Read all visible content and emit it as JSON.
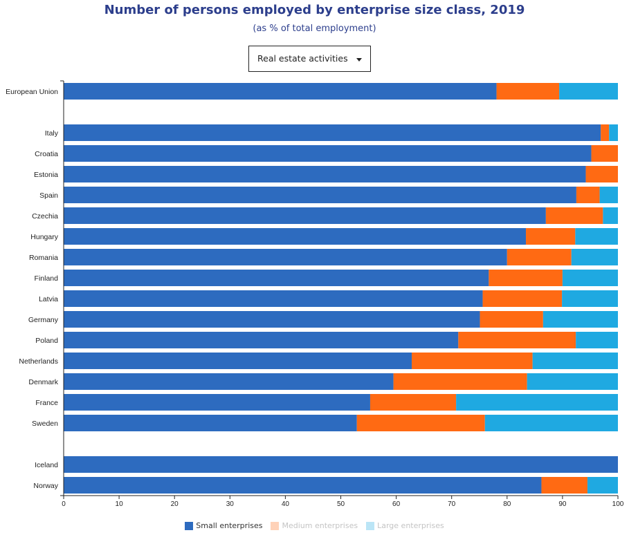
{
  "header": {
    "title": "Number of persons employed by enterprise size class, 2019",
    "subtitle": "(as % of total employment)"
  },
  "selector": {
    "selected": "Real estate activities"
  },
  "legend": [
    {
      "label": "Small enterprises",
      "color": "#2d6bbf",
      "active": true
    },
    {
      "label": "Medium enterprises",
      "color": "#ff6a13",
      "active": false
    },
    {
      "label": "Large enterprises",
      "color": "#1fa9e1",
      "active": false
    }
  ],
  "chart_data": {
    "type": "bar",
    "orientation": "horizontal",
    "stacked": true,
    "title": "Number of persons employed by enterprise size class, 2019",
    "subtitle": "(as % of total employment)",
    "xlim": [
      0,
      100
    ],
    "xticks": [
      "0",
      "10",
      "20",
      "30",
      "40",
      "50",
      "60",
      "70",
      "80",
      "90",
      "100"
    ],
    "categories": [
      "European Union",
      "",
      "Italy",
      "Croatia",
      "Estonia",
      "Spain",
      "Czechia",
      "Hungary",
      "Romania",
      "Finland",
      "Latvia",
      "Germany",
      "Poland",
      "Netherlands",
      "Denmark",
      "France",
      "Sweden",
      "",
      "Iceland",
      "Norway"
    ],
    "series": [
      {
        "name": "Small enterprises",
        "color": "#2d6bbf",
        "values": [
          78.1,
          null,
          96.9,
          95.2,
          94.2,
          92.5,
          87.0,
          83.4,
          80.0,
          76.7,
          75.6,
          75.1,
          71.2,
          62.8,
          59.5,
          55.3,
          52.9,
          null,
          100.0,
          86.2
        ]
      },
      {
        "name": "Medium enterprises",
        "color": "#ff6a13",
        "values": [
          11.3,
          null,
          1.5,
          4.8,
          5.8,
          4.2,
          10.3,
          8.9,
          11.6,
          13.3,
          14.3,
          11.4,
          21.2,
          21.8,
          24.1,
          15.5,
          23.1,
          null,
          0.0,
          8.3
        ]
      },
      {
        "name": "Large enterprises",
        "color": "#1fa9e1",
        "values": [
          10.6,
          null,
          1.6,
          0.0,
          0.0,
          3.3,
          2.7,
          7.7,
          8.4,
          10.0,
          10.1,
          13.5,
          7.6,
          15.4,
          16.4,
          29.2,
          24.0,
          null,
          0.0,
          5.5
        ]
      }
    ]
  }
}
